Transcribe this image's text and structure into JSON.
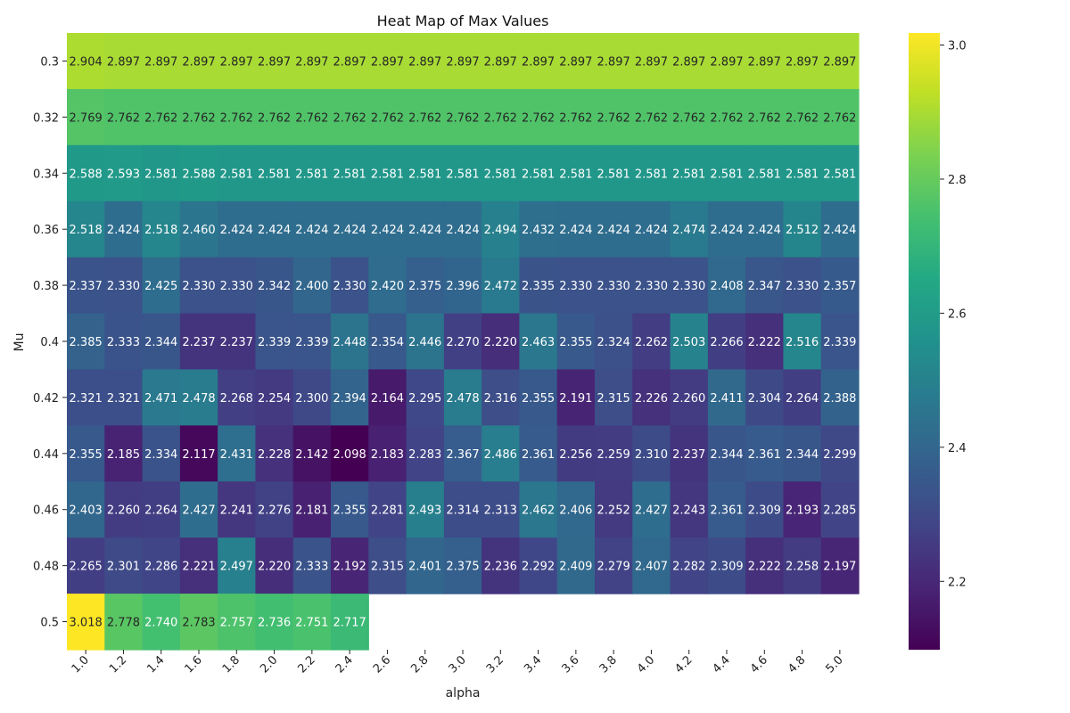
{
  "chart_data": {
    "type": "heatmap",
    "title": "Heat Map of Max Values",
    "xlabel": "alpha",
    "ylabel": "Mu",
    "x_categories": [
      "1.0",
      "1.2",
      "1.4",
      "1.6",
      "1.8",
      "2.0",
      "2.2",
      "2.4",
      "2.6",
      "2.8",
      "3.0",
      "3.2",
      "3.4",
      "3.6",
      "3.8",
      "4.0",
      "4.2",
      "4.4",
      "4.6",
      "4.8",
      "5.0"
    ],
    "y_categories": [
      "0.3",
      "0.32",
      "0.34",
      "0.36",
      "0.38",
      "0.4",
      "0.42",
      "0.44",
      "0.46",
      "0.48",
      "0.5"
    ],
    "values": [
      [
        2.904,
        2.897,
        2.897,
        2.897,
        2.897,
        2.897,
        2.897,
        2.897,
        2.897,
        2.897,
        2.897,
        2.897,
        2.897,
        2.897,
        2.897,
        2.897,
        2.897,
        2.897,
        2.897,
        2.897,
        2.897
      ],
      [
        2.769,
        2.762,
        2.762,
        2.762,
        2.762,
        2.762,
        2.762,
        2.762,
        2.762,
        2.762,
        2.762,
        2.762,
        2.762,
        2.762,
        2.762,
        2.762,
        2.762,
        2.762,
        2.762,
        2.762,
        2.762
      ],
      [
        2.588,
        2.593,
        2.581,
        2.588,
        2.581,
        2.581,
        2.581,
        2.581,
        2.581,
        2.581,
        2.581,
        2.581,
        2.581,
        2.581,
        2.581,
        2.581,
        2.581,
        2.581,
        2.581,
        2.581,
        2.581
      ],
      [
        2.518,
        2.424,
        2.518,
        2.46,
        2.424,
        2.424,
        2.424,
        2.424,
        2.424,
        2.424,
        2.424,
        2.494,
        2.432,
        2.424,
        2.424,
        2.424,
        2.474,
        2.424,
        2.424,
        2.512,
        2.424
      ],
      [
        2.337,
        2.33,
        2.425,
        2.33,
        2.33,
        2.342,
        2.4,
        2.33,
        2.42,
        2.375,
        2.396,
        2.472,
        2.335,
        2.33,
        2.33,
        2.33,
        2.33,
        2.408,
        2.347,
        2.33,
        2.357
      ],
      [
        2.385,
        2.333,
        2.344,
        2.237,
        2.237,
        2.339,
        2.339,
        2.448,
        2.354,
        2.446,
        2.27,
        2.22,
        2.463,
        2.355,
        2.324,
        2.262,
        2.503,
        2.266,
        2.222,
        2.516,
        2.339
      ],
      [
        2.321,
        2.321,
        2.471,
        2.478,
        2.268,
        2.254,
        2.3,
        2.394,
        2.164,
        2.295,
        2.478,
        2.316,
        2.355,
        2.191,
        2.315,
        2.226,
        2.26,
        2.411,
        2.304,
        2.264,
        2.388
      ],
      [
        2.355,
        2.185,
        2.334,
        2.117,
        2.431,
        2.228,
        2.142,
        2.098,
        2.183,
        2.283,
        2.367,
        2.486,
        2.361,
        2.256,
        2.259,
        2.31,
        2.237,
        2.344,
        2.361,
        2.344,
        2.299
      ],
      [
        2.403,
        2.26,
        2.264,
        2.427,
        2.241,
        2.276,
        2.181,
        2.355,
        2.281,
        2.493,
        2.314,
        2.313,
        2.462,
        2.406,
        2.252,
        2.427,
        2.243,
        2.361,
        2.309,
        2.193,
        2.285
      ],
      [
        2.265,
        2.301,
        2.286,
        2.221,
        2.497,
        2.22,
        2.333,
        2.192,
        2.315,
        2.401,
        2.375,
        2.236,
        2.292,
        2.409,
        2.279,
        2.407,
        2.282,
        2.309,
        2.222,
        2.258,
        2.197
      ],
      [
        3.018,
        2.778,
        2.74,
        2.783,
        2.757,
        2.736,
        2.751,
        2.717,
        null,
        null,
        null,
        null,
        null,
        null,
        null,
        null,
        null,
        null,
        null,
        null,
        null
      ]
    ],
    "colormap": "viridis",
    "vmin": 2.098,
    "vmax": 3.018,
    "colorbar": {
      "ticks": [
        2.2,
        2.4,
        2.6,
        2.8,
        3.0
      ],
      "tick_labels": [
        "2.2",
        "2.4",
        "2.6",
        "2.8",
        "3.0"
      ],
      "placement": "right"
    },
    "annotate_cells": true,
    "value_format": "3 decimals"
  }
}
